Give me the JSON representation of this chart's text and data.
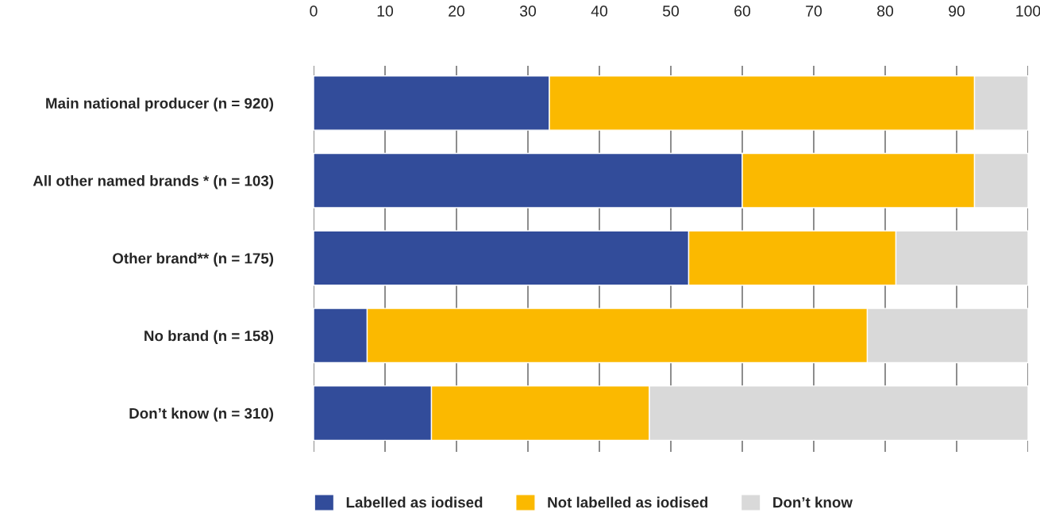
{
  "chart_data": {
    "type": "bar",
    "orientation": "horizontal",
    "stacked": true,
    "categories": [
      "Main national producer (n = 920)",
      "All other named brands * (n = 103)",
      "Other brand** (n = 175)",
      "No brand (n = 158)",
      "Don’t know (n = 310)"
    ],
    "series": [
      {
        "name": "Labelled as iodised",
        "color": "#324c9a",
        "values": [
          33,
          60,
          52.5,
          7.5,
          16.5
        ]
      },
      {
        "name": "Not labelled as iodised",
        "color": "#fbb900",
        "values": [
          59.5,
          32.5,
          29,
          70,
          30.5
        ]
      },
      {
        "name": "Don’t know",
        "color": "#d9d9d9",
        "values": [
          7.5,
          7.5,
          18.5,
          22.5,
          53
        ]
      }
    ],
    "xlim": [
      0,
      100
    ],
    "xticks": [
      0,
      10,
      20,
      30,
      40,
      50,
      60,
      70,
      80,
      90,
      100
    ],
    "grid": "x",
    "legend": "bottom"
  }
}
